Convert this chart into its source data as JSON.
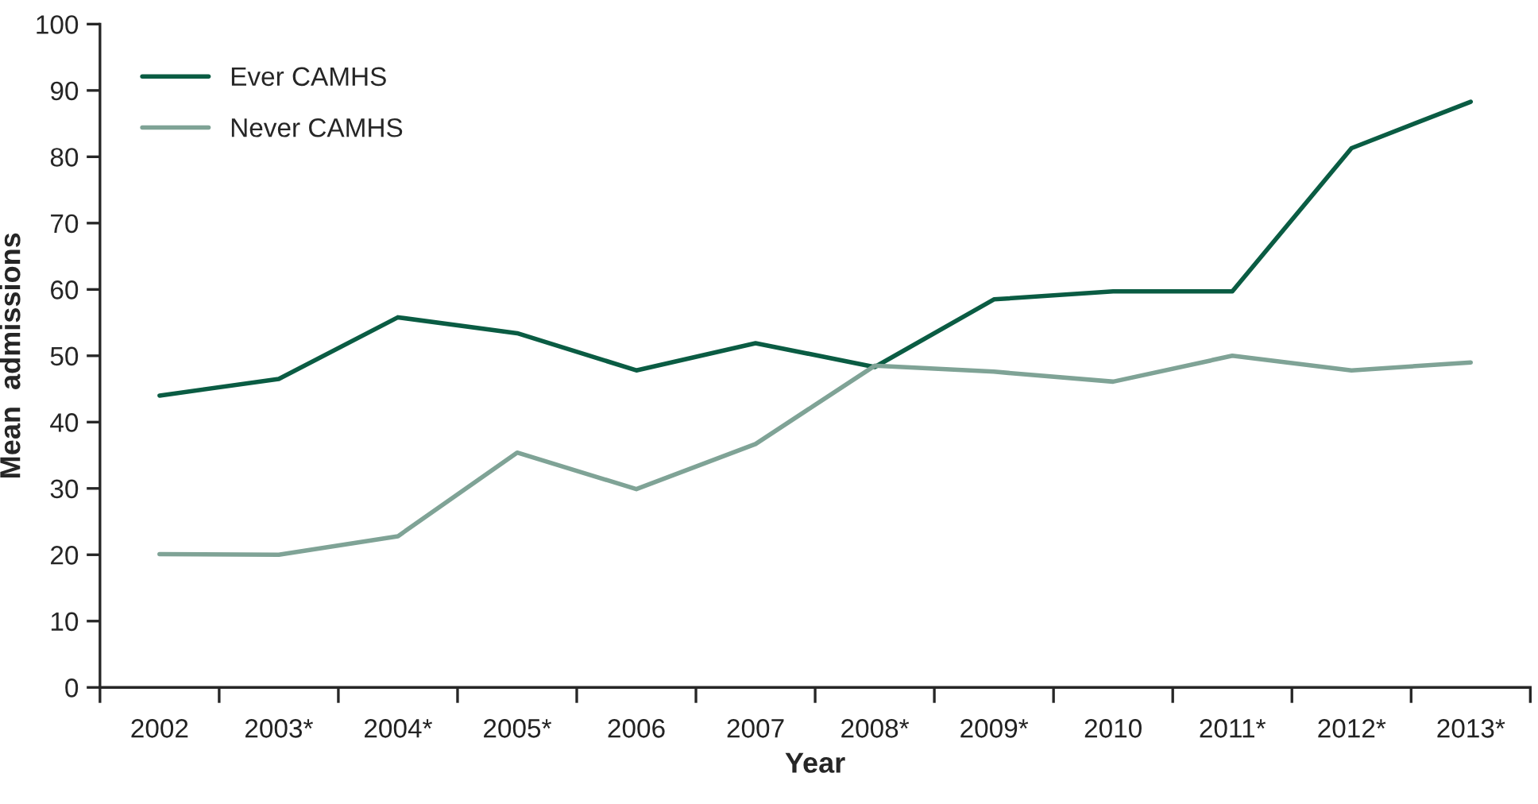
{
  "chart_data": {
    "type": "line",
    "xlabel": "Year",
    "ylabel": "Mean  admissions",
    "categories": [
      "2002",
      "2003*",
      "2004*",
      "2005*",
      "2006",
      "2007",
      "2008*",
      "2009*",
      "2010",
      "2011*",
      "2012*",
      "2013*"
    ],
    "series": [
      {
        "name": "Ever CAMHS",
        "color": "#0a5c43",
        "values": [
          44,
          46.5,
          55.8,
          53.4,
          47.8,
          51.9,
          48.3,
          58.5,
          59.7,
          59.7,
          81.3,
          88.3
        ]
      },
      {
        "name": "Never CAMHS",
        "color": "#7fa396",
        "values": [
          20.1,
          20,
          22.8,
          35.4,
          29.9,
          36.7,
          48.5,
          47.6,
          46.1,
          50,
          47.8,
          49
        ]
      }
    ],
    "ylim": [
      0,
      100
    ],
    "yticks": [
      0,
      10,
      20,
      30,
      40,
      50,
      60,
      70,
      80,
      90,
      100
    ],
    "grid": false,
    "legend": "top left",
    "marker": "none",
    "line_style": "solid"
  }
}
